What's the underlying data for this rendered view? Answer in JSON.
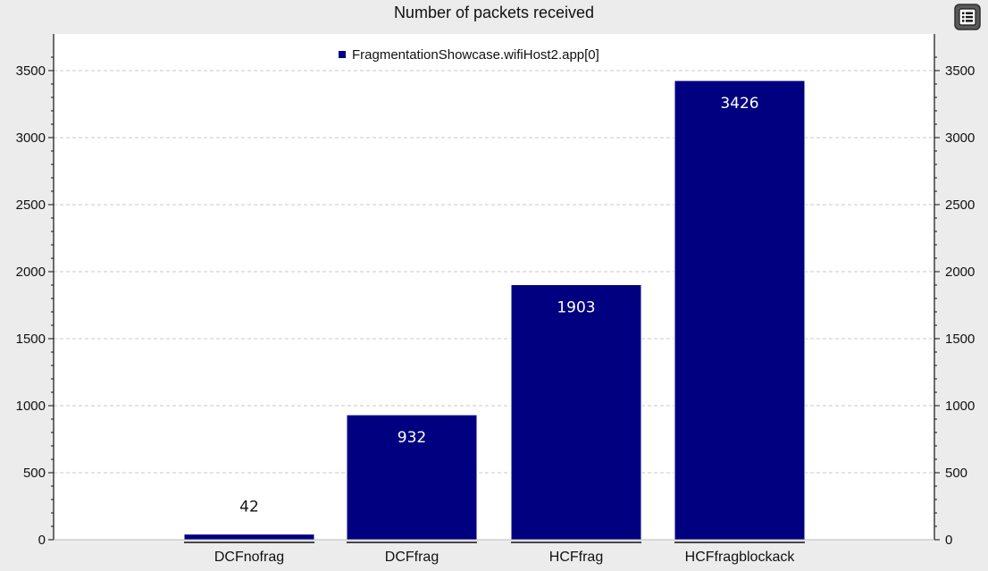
{
  "chart_data": {
    "type": "bar",
    "title": "Number of packets received",
    "xlabel": "",
    "ylabel": "",
    "categories": [
      "DCFnofrag",
      "DCFfrag",
      "HCFfrag",
      "HCFfragblockack"
    ],
    "series": [
      {
        "name": "FragmentationShowcase.wifiHost2.app[0]",
        "values": [
          42,
          932,
          1903,
          3426
        ],
        "color": "#000080"
      }
    ],
    "ylim": [
      0,
      3600
    ],
    "yticks": [
      0,
      500,
      1000,
      1500,
      2000,
      2500,
      3000,
      3500
    ],
    "grid": true,
    "legend_position": "top-center",
    "axes": "left-and-right",
    "data_labels": true
  },
  "toolbar": {
    "menu_icon": "list-menu-icon"
  },
  "colors": {
    "background": "#ececec",
    "plot_background": "#ffffff",
    "bar": "#000080",
    "grid": "#c8c8c8"
  }
}
